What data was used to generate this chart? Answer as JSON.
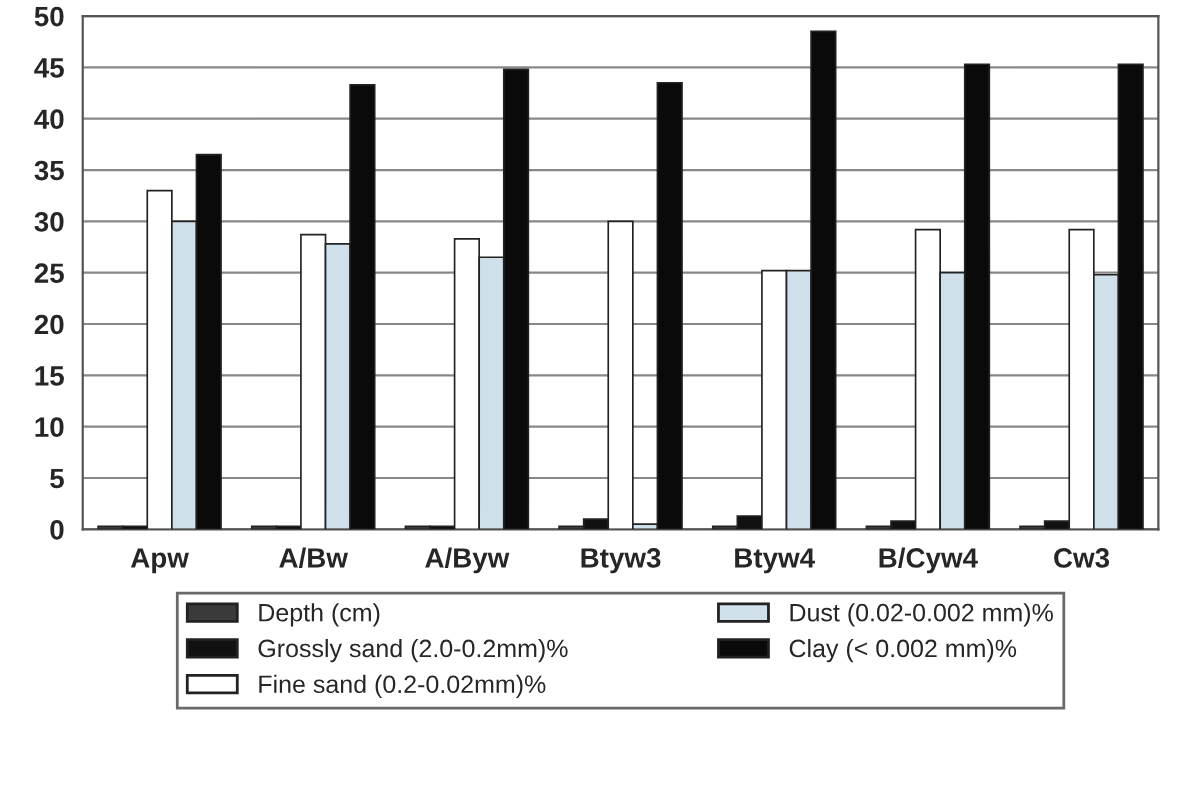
{
  "chart_data": {
    "type": "bar",
    "categories": [
      "Apw",
      "A/Bw",
      "A/Byw",
      "Btyw3",
      "Btyw4",
      "B/Cyw4",
      "Cw3"
    ],
    "series": [
      {
        "name": "Depth (cm)",
        "color": "#3a3a3a",
        "values": [
          0.3,
          0.3,
          0.3,
          0.3,
          0.3,
          0.3,
          0.3
        ]
      },
      {
        "name": "Grossly sand (2.0-0.2mm)%",
        "color": "#111111",
        "values": [
          0.3,
          0.3,
          0.3,
          1.0,
          1.3,
          0.8,
          0.8
        ]
      },
      {
        "name": "Fine sand (0.2-0.02mm)%",
        "color": "#ffffff",
        "values": [
          33,
          28.7,
          28.3,
          30,
          25.2,
          29.2,
          29.2
        ]
      },
      {
        "name": "Dust (0.02-0.002 mm)%",
        "color": "#cfe0ea",
        "values": [
          30,
          27.8,
          26.5,
          0.5,
          25.2,
          25,
          24.8
        ]
      },
      {
        "name": "Clay (< 0.002 mm)%",
        "color": "#0a0a0a",
        "values": [
          36.5,
          43.3,
          44.8,
          43.5,
          48.5,
          45.3,
          45.3
        ]
      }
    ],
    "ylim": [
      0,
      50
    ],
    "yticks": [
      0,
      5,
      10,
      15,
      20,
      25,
      30,
      35,
      40,
      45,
      50
    ],
    "grid": "y",
    "legend": "bottom"
  }
}
